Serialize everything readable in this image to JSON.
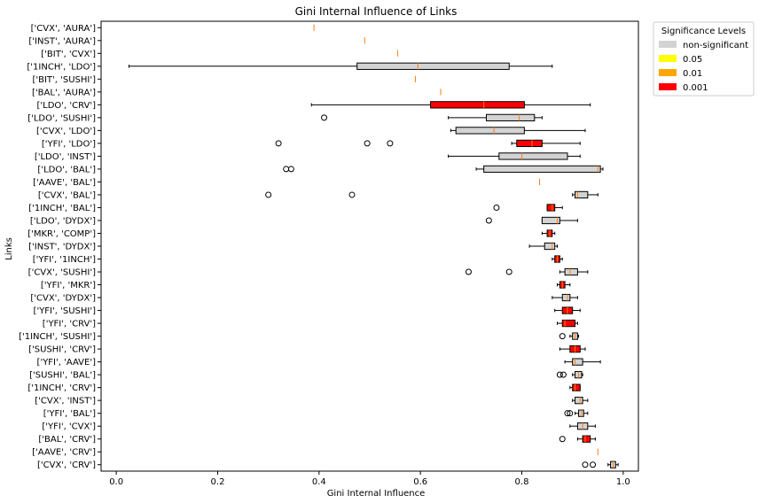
{
  "chart_data": {
    "type": "boxplot",
    "title": "Gini Internal Influence of Links",
    "xlabel": "Gini Internal Influence",
    "ylabel": "Links",
    "xlim": [
      -0.03,
      1.03
    ],
    "xticks": [
      0.0,
      0.2,
      0.4,
      0.6,
      0.8,
      1.0
    ],
    "xtick_labels": [
      "0.0",
      "0.2",
      "0.4",
      "0.6",
      "0.8",
      "1.0"
    ],
    "legend": {
      "title": "Significance Levels",
      "placement": "outside-top-right",
      "entries": [
        {
          "label": "non-significant",
          "color": "#d3d3d3"
        },
        {
          "label": "0.05",
          "color": "#ffff00"
        },
        {
          "label": "0.01",
          "color": "#ffa500"
        },
        {
          "label": "0.001",
          "color": "#ff0000"
        }
      ]
    },
    "median_color": "#ff7f0e",
    "links": [
      {
        "label": "['CVX', 'AURA']",
        "sig": "non-significant",
        "whislo": 0.39,
        "q1": 0.39,
        "med": 0.39,
        "q3": 0.39,
        "whishi": 0.39,
        "fliers": []
      },
      {
        "label": "['INST', 'AURA']",
        "sig": "non-significant",
        "whislo": 0.49,
        "q1": 0.49,
        "med": 0.49,
        "q3": 0.49,
        "whishi": 0.49,
        "fliers": []
      },
      {
        "label": "['BIT', 'CVX']",
        "sig": "non-significant",
        "whislo": 0.555,
        "q1": 0.555,
        "med": 0.555,
        "q3": 0.555,
        "whishi": 0.555,
        "fliers": []
      },
      {
        "label": "['1INCH', 'LDO']",
        "sig": "non-significant",
        "whislo": 0.025,
        "q1": 0.475,
        "med": 0.595,
        "q3": 0.775,
        "whishi": 0.86,
        "fliers": []
      },
      {
        "label": "['BIT', 'SUSHI']",
        "sig": "non-significant",
        "whislo": 0.59,
        "q1": 0.59,
        "med": 0.59,
        "q3": 0.59,
        "whishi": 0.59,
        "fliers": []
      },
      {
        "label": "['BAL', 'AURA']",
        "sig": "non-significant",
        "whislo": 0.64,
        "q1": 0.64,
        "med": 0.64,
        "q3": 0.64,
        "whishi": 0.64,
        "fliers": []
      },
      {
        "label": "['LDO', 'CRV']",
        "sig": "0.001",
        "whislo": 0.385,
        "q1": 0.62,
        "med": 0.725,
        "q3": 0.805,
        "whishi": 0.935,
        "fliers": []
      },
      {
        "label": "['LDO', 'SUSHI']",
        "sig": "non-significant",
        "whislo": 0.655,
        "q1": 0.73,
        "med": 0.795,
        "q3": 0.825,
        "whishi": 0.84,
        "fliers": [
          0.41
        ]
      },
      {
        "label": "['CVX', 'LDO']",
        "sig": "non-significant",
        "whislo": 0.66,
        "q1": 0.67,
        "med": 0.745,
        "q3": 0.805,
        "whishi": 0.925,
        "fliers": []
      },
      {
        "label": "['YFI', 'LDO']",
        "sig": "0.001",
        "whislo": 0.78,
        "q1": 0.79,
        "med": 0.82,
        "q3": 0.84,
        "whishi": 0.915,
        "fliers": [
          0.32,
          0.495,
          0.54
        ]
      },
      {
        "label": "['LDO', 'INST']",
        "sig": "non-significant",
        "whislo": 0.655,
        "q1": 0.755,
        "med": 0.8,
        "q3": 0.89,
        "whishi": 0.915,
        "fliers": []
      },
      {
        "label": "['LDO', 'BAL']",
        "sig": "non-significant",
        "whislo": 0.71,
        "q1": 0.725,
        "med": 0.95,
        "q3": 0.955,
        "whishi": 0.96,
        "fliers": [
          0.335,
          0.345
        ]
      },
      {
        "label": "['AAVE', 'BAL']",
        "sig": "non-significant",
        "whislo": 0.835,
        "q1": 0.835,
        "med": 0.835,
        "q3": 0.835,
        "whishi": 0.835,
        "fliers": []
      },
      {
        "label": "['CVX', 'BAL']",
        "sig": "non-significant",
        "whislo": 0.9,
        "q1": 0.905,
        "med": 0.91,
        "q3": 0.93,
        "whishi": 0.95,
        "fliers": [
          0.3,
          0.465
        ]
      },
      {
        "label": "['1INCH', 'BAL']",
        "sig": "0.001",
        "whislo": 0.85,
        "q1": 0.85,
        "med": 0.86,
        "q3": 0.865,
        "whishi": 0.88,
        "fliers": [
          0.75
        ]
      },
      {
        "label": "['LDO', 'DYDX']",
        "sig": "non-significant",
        "whislo": 0.84,
        "q1": 0.84,
        "med": 0.87,
        "q3": 0.875,
        "whishi": 0.91,
        "fliers": [
          0.735
        ]
      },
      {
        "label": "['MKR', 'COMP']",
        "sig": "0.001",
        "whislo": 0.84,
        "q1": 0.85,
        "med": 0.855,
        "q3": 0.86,
        "whishi": 0.865,
        "fliers": []
      },
      {
        "label": "['INST', 'DYDX']",
        "sig": "non-significant",
        "whislo": 0.815,
        "q1": 0.845,
        "med": 0.86,
        "q3": 0.865,
        "whishi": 0.87,
        "fliers": []
      },
      {
        "label": "['YFI', '1INCH']",
        "sig": "0.001",
        "whislo": 0.86,
        "q1": 0.865,
        "med": 0.87,
        "q3": 0.875,
        "whishi": 0.88,
        "fliers": []
      },
      {
        "label": "['CVX', 'SUSHI']",
        "sig": "non-significant",
        "whislo": 0.875,
        "q1": 0.885,
        "med": 0.895,
        "q3": 0.91,
        "whishi": 0.93,
        "fliers": [
          0.695,
          0.775
        ]
      },
      {
        "label": "['YFI', 'MKR']",
        "sig": "0.001",
        "whislo": 0.87,
        "q1": 0.875,
        "med": 0.88,
        "q3": 0.885,
        "whishi": 0.895,
        "fliers": []
      },
      {
        "label": "['CVX', 'DYDX']",
        "sig": "non-significant",
        "whislo": 0.86,
        "q1": 0.88,
        "med": 0.89,
        "q3": 0.895,
        "whishi": 0.91,
        "fliers": []
      },
      {
        "label": "['YFI', 'SUSHI']",
        "sig": "0.001",
        "whislo": 0.865,
        "q1": 0.88,
        "med": 0.89,
        "q3": 0.9,
        "whishi": 0.915,
        "fliers": []
      },
      {
        "label": "['YFI', 'CRV']",
        "sig": "0.001",
        "whislo": 0.87,
        "q1": 0.88,
        "med": 0.885,
        "q3": 0.905,
        "whishi": 0.91,
        "fliers": []
      },
      {
        "label": "['1INCH', 'SUSHI']",
        "sig": "non-significant",
        "whislo": 0.895,
        "q1": 0.9,
        "med": 0.905,
        "q3": 0.91,
        "whishi": 0.912,
        "fliers": [
          0.88
        ]
      },
      {
        "label": "['SUSHI', 'CRV']",
        "sig": "0.001",
        "whislo": 0.875,
        "q1": 0.895,
        "med": 0.905,
        "q3": 0.915,
        "whishi": 0.925,
        "fliers": []
      },
      {
        "label": "['YFI', 'AAVE']",
        "sig": "non-significant",
        "whislo": 0.885,
        "q1": 0.9,
        "med": 0.905,
        "q3": 0.92,
        "whishi": 0.955,
        "fliers": []
      },
      {
        "label": "['SUSHI', 'BAL']",
        "sig": "non-significant",
        "whislo": 0.9,
        "q1": 0.905,
        "med": 0.912,
        "q3": 0.918,
        "whishi": 0.92,
        "fliers": [
          0.875,
          0.882
        ]
      },
      {
        "label": "['1INCH', 'CRV']",
        "sig": "0.001",
        "whislo": 0.895,
        "q1": 0.9,
        "med": 0.905,
        "q3": 0.915,
        "whishi": 0.915,
        "fliers": []
      },
      {
        "label": "['CVX', 'INST']",
        "sig": "non-significant",
        "whislo": 0.9,
        "q1": 0.905,
        "med": 0.915,
        "q3": 0.92,
        "whishi": 0.93,
        "fliers": []
      },
      {
        "label": "['YFI', 'BAL']",
        "sig": "non-significant",
        "whislo": 0.905,
        "q1": 0.912,
        "med": 0.918,
        "q3": 0.922,
        "whishi": 0.93,
        "fliers": [
          0.89,
          0.895
        ]
      },
      {
        "label": "['YFI', 'CVX']",
        "sig": "non-significant",
        "whislo": 0.895,
        "q1": 0.91,
        "med": 0.92,
        "q3": 0.93,
        "whishi": 0.945,
        "fliers": []
      },
      {
        "label": "['BAL', 'CRV']",
        "sig": "0.001",
        "whislo": 0.91,
        "q1": 0.92,
        "med": 0.925,
        "q3": 0.935,
        "whishi": 0.945,
        "fliers": [
          0.88
        ]
      },
      {
        "label": "['AAVE', 'CRV']",
        "sig": "non-significant",
        "whislo": 0.95,
        "q1": 0.95,
        "med": 0.95,
        "q3": 0.95,
        "whishi": 0.95,
        "fliers": []
      },
      {
        "label": "['CVX', 'CRV']",
        "sig": "non-significant",
        "whislo": 0.97,
        "q1": 0.975,
        "med": 0.98,
        "q3": 0.985,
        "whishi": 0.99,
        "fliers": [
          0.925,
          0.94
        ]
      }
    ]
  }
}
